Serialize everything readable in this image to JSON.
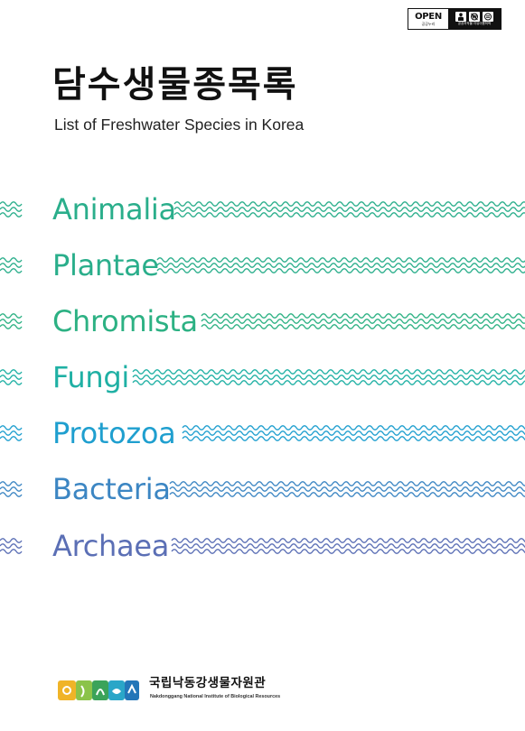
{
  "open_badge": {
    "word": "OPEN",
    "left_caption": "공공누리",
    "right_caption": "공공저작물 자유이용허락",
    "icons": [
      "person-icon",
      "no-commercial-icon",
      "no-derivative-icon"
    ]
  },
  "title": {
    "korean": "담수생물종목록",
    "english": "List of Freshwater Species in Korea"
  },
  "kingdoms": [
    {
      "label": "Animalia",
      "color": "#2aae8b"
    },
    {
      "label": "Plantae",
      "color": "#2aae8b"
    },
    {
      "label": "Chromista",
      "color": "#2cb183"
    },
    {
      "label": "Fungi",
      "color": "#1fb0a4"
    },
    {
      "label": "Protozoa",
      "color": "#1f9fcf"
    },
    {
      "label": "Bacteria",
      "color": "#3c86c3"
    },
    {
      "label": "Archaea",
      "color": "#5b6fb5"
    }
  ],
  "footer": {
    "org_korean": "국립낙동강생물자원관",
    "org_english": "Nakdonggang National Institute of Biological Resources"
  }
}
